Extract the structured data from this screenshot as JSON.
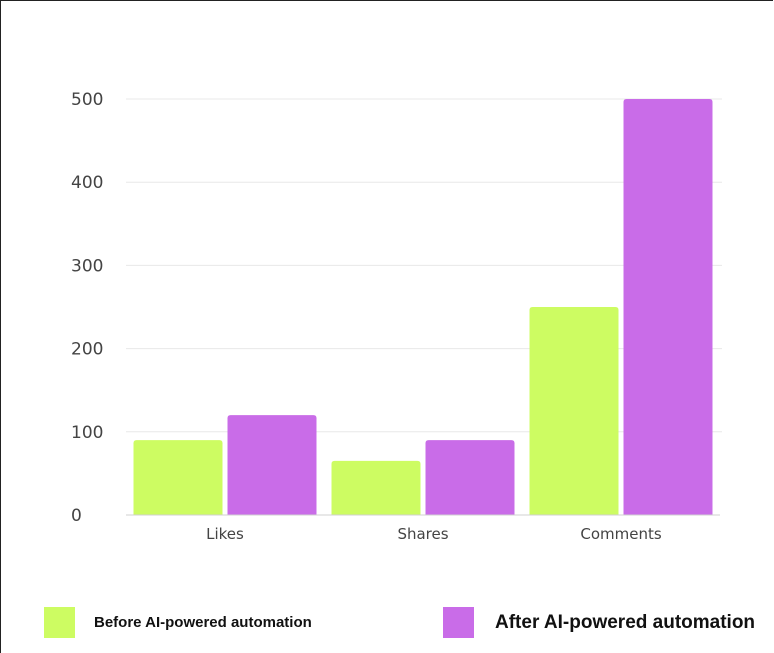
{
  "chart_data": {
    "type": "bar",
    "title": "",
    "xlabel": "",
    "ylabel": "",
    "categories": [
      "Likes",
      "Shares",
      "Comments"
    ],
    "series": [
      {
        "name": "Before AI-powered automation",
        "color": "#cdfc62",
        "values": [
          90,
          65,
          250
        ]
      },
      {
        "name": "After AI-powered automation",
        "color": "#c96ce8",
        "values": [
          120,
          90,
          500
        ]
      }
    ],
    "ylim": [
      0,
      500
    ],
    "yticks": [
      "0",
      "100",
      "200",
      "300",
      "400",
      "500"
    ],
    "grid": true,
    "legend_position": "bottom"
  }
}
